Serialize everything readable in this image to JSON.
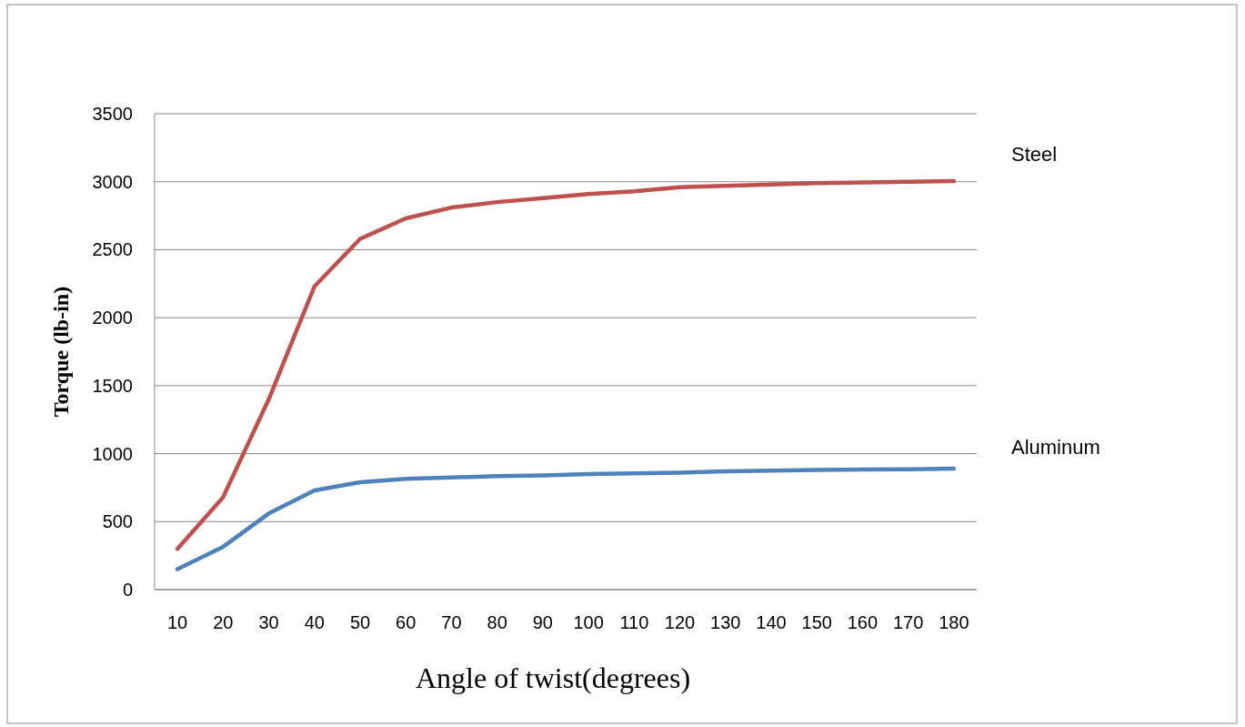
{
  "chart_data": {
    "type": "line",
    "xlabel": "Angle of twist(degrees)",
    "ylabel": "Torque (lb-in)",
    "categories": [
      "10",
      "20",
      "30",
      "40",
      "50",
      "60",
      "70",
      "80",
      "90",
      "100",
      "110",
      "120",
      "130",
      "140",
      "150",
      "160",
      "170",
      "180"
    ],
    "series": [
      {
        "name": "Steel",
        "color": "#c0504d",
        "values": [
          300,
          680,
          1400,
          2230,
          2580,
          2730,
          2810,
          2850,
          2880,
          2910,
          2930,
          2960,
          2970,
          2980,
          2990,
          2995,
          3000,
          3005
        ]
      },
      {
        "name": "Aluminum",
        "color": "#4f81bd",
        "values": [
          150,
          315,
          560,
          730,
          790,
          815,
          825,
          835,
          840,
          850,
          855,
          860,
          870,
          875,
          880,
          883,
          885,
          890
        ]
      }
    ],
    "ylim": [
      0,
      3500
    ],
    "yticks": [
      0,
      500,
      1000,
      1500,
      2000,
      2500,
      3000,
      3500
    ],
    "grid": "y",
    "legend": "right",
    "marker": "none",
    "line_style": "solid"
  }
}
